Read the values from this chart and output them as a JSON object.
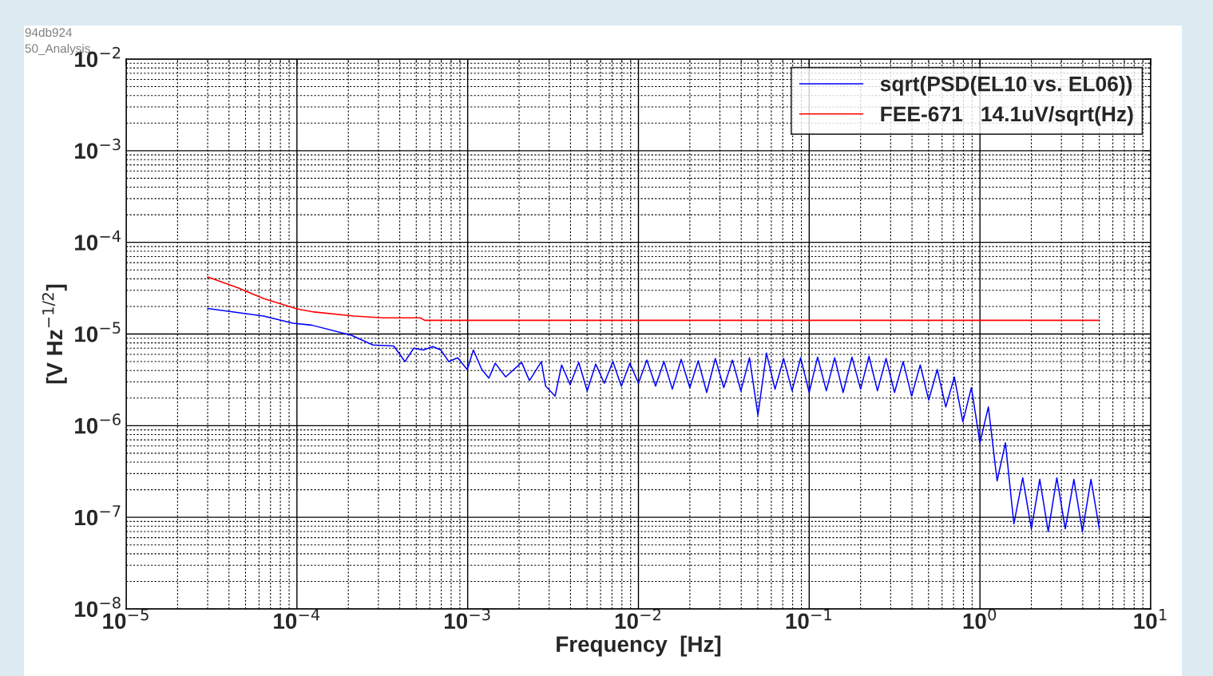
{
  "chart_data": {
    "type": "line",
    "xlabel": "Frequency  [Hz]",
    "ylabel": "[V Hz$^{−1/2}$]",
    "log": "xy",
    "grid": true,
    "legend": "top right",
    "marker": "none",
    "line_style": "solid",
    "xlim": [
      1e-05,
      10
    ],
    "ylim": [
      1e-08,
      0.01
    ],
    "xticks": [
      {
        "value": 1e-05,
        "label": "10$^{−5}$"
      },
      {
        "value": 0.0001,
        "label": "10$^{−4}$"
      },
      {
        "value": 0.001,
        "label": "10$^{−3}$"
      },
      {
        "value": 0.01,
        "label": "10$^{−2}$"
      },
      {
        "value": 0.1,
        "label": "10$^{−1}$"
      },
      {
        "value": 1,
        "label": "10$^{0}$"
      },
      {
        "value": 10,
        "label": "10$^{1}$"
      }
    ],
    "yticks": [
      {
        "value": 1e-08,
        "label": "10$^{−8}$"
      },
      {
        "value": 1e-07,
        "label": "10$^{−7}$"
      },
      {
        "value": 1e-06,
        "label": "10$^{−6}$"
      },
      {
        "value": 1e-05,
        "label": "10$^{−5}$"
      },
      {
        "value": 0.0001,
        "label": "10$^{−4}$"
      },
      {
        "value": 0.001,
        "label": "10$^{−3}$"
      },
      {
        "value": 0.01,
        "label": "10$^{−2}$"
      }
    ],
    "annotations": [
      "94db924",
      "50_Analysis"
    ],
    "series": [
      {
        "name": "sqrt(PSD(EL10 vs. EL06))",
        "color": "#0000ff",
        "x": [
          3e-05,
          6.37e-05,
          9.5e-05,
          0.000122,
          0.000208,
          0.000279,
          0.000369,
          0.000429,
          0.000483,
          0.00055,
          0.000625,
          0.000696,
          0.000776,
          0.000873,
          0.000994,
          0.00108,
          0.00121,
          0.00133,
          0.00145,
          0.00167,
          0.00207,
          0.0023,
          0.0027,
          0.00286,
          0.00325,
          0.00355,
          0.00398,
          0.00447,
          0.00501,
          0.00562,
          0.00631,
          0.00708,
          0.00794,
          0.00891,
          0.01,
          0.0112,
          0.0126,
          0.0141,
          0.0158,
          0.0178,
          0.02,
          0.0224,
          0.0251,
          0.0282,
          0.0316,
          0.0355,
          0.0398,
          0.0447,
          0.0501,
          0.0562,
          0.0631,
          0.0708,
          0.0794,
          0.0891,
          0.1,
          0.112,
          0.126,
          0.141,
          0.158,
          0.178,
          0.2,
          0.224,
          0.251,
          0.282,
          0.316,
          0.355,
          0.398,
          0.447,
          0.501,
          0.562,
          0.631,
          0.708,
          0.794,
          0.891,
          1.0,
          1.12,
          1.26,
          1.41,
          1.58,
          1.78,
          2.0,
          2.24,
          2.51,
          2.82,
          3.16,
          3.55,
          3.98,
          4.47,
          5.0
        ],
        "values": [
          1.9e-05,
          1.57e-05,
          1.31e-05,
          1.25e-05,
          9.7e-06,
          7.6e-06,
          7.4e-06,
          5e-06,
          7e-06,
          6.7e-06,
          7.3e-06,
          6.7e-06,
          5e-06,
          5.5e-06,
          4.1e-06,
          6.7e-06,
          4.1e-06,
          3.3e-06,
          4.8e-06,
          3.4e-06,
          4.9e-06,
          3.1e-06,
          5e-06,
          2.7e-06,
          2.1e-06,
          4.6e-06,
          2.8e-06,
          4.9e-06,
          2.4e-06,
          4.7e-06,
          2.9e-06,
          5e-06,
          2.7e-06,
          4.8e-06,
          2.9e-06,
          5.2e-06,
          2.7e-06,
          5e-06,
          2.5e-06,
          5.3e-06,
          2.6e-06,
          5.1e-06,
          2.3e-06,
          5.4e-06,
          2.6e-06,
          5.2e-06,
          2.4e-06,
          5.5e-06,
          1.3e-06,
          6.2e-06,
          2.5e-06,
          5.4e-06,
          2.4e-06,
          5.5e-06,
          2.3e-06,
          5.6e-06,
          2.4e-06,
          5.5e-06,
          2.3e-06,
          5.6e-06,
          2.5e-06,
          5.7e-06,
          2.4e-06,
          5.4e-06,
          2.3e-06,
          5e-06,
          2.1e-06,
          4.6e-06,
          1.9e-06,
          4.1e-06,
          1.6e-06,
          3.4e-06,
          1.1e-06,
          2.6e-06,
          6.5e-07,
          1.6e-06,
          2.5e-07,
          6.5e-07,
          8.5e-08,
          2.7e-07,
          7.5e-08,
          2.6e-07,
          7e-08,
          2.7e-07,
          7.5e-08,
          2.6e-07,
          7e-08,
          2.6e-07,
          7.5e-08
        ]
      },
      {
        "name": "FEE-671   14.1uV/sqrt(Hz)",
        "color": "#ff0000",
        "x": [
          3e-05,
          4.5e-05,
          6.37e-05,
          0.0001,
          0.000126,
          0.000216,
          0.00032,
          0.00053,
          0.00056,
          5.0
        ],
        "values": [
          4.2e-05,
          3.2e-05,
          2.44e-05,
          1.88e-05,
          1.74e-05,
          1.57e-05,
          1.5e-05,
          1.5e-05,
          1.41e-05,
          1.41e-05
        ]
      }
    ]
  }
}
